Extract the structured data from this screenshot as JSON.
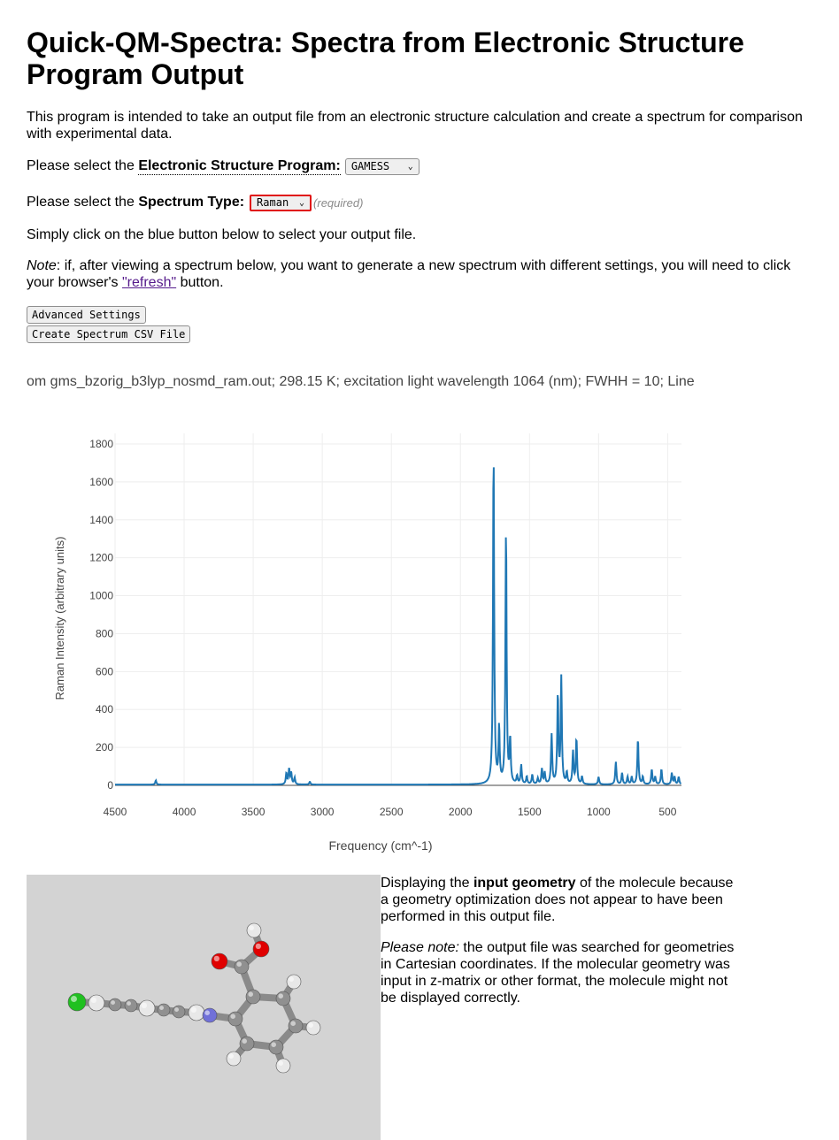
{
  "page_title": "Quick-QM-Spectra: Spectra from Electronic Structure Program Output",
  "intro": "This program is intended to take an output file from an electronic structure calculation and create a spectrum for comparison with experimental data.",
  "program_select": {
    "prefix": "Please select the",
    "label": "Electronic Structure Program:",
    "value": "GAMESS"
  },
  "spectrum_select": {
    "prefix": "Please select the",
    "label": "Spectrum Type:",
    "value": "Raman",
    "required": "(required)"
  },
  "instruction": "Simply click on the blue button below to select your output file.",
  "note": {
    "label": "Note",
    "text_before": ": if, after viewing a spectrum below, you want to generate a new spectrum with different settings, you will need to click your browser's ",
    "link": "\"refresh\"",
    "text_after": " button."
  },
  "buttons": {
    "advanced": "Advanced Settings",
    "csv": "Create Spectrum CSV File"
  },
  "marquee": "om gms_bzorig_b3lyp_nosmd_ram.out; 298.15 K; excitation light wavelength 1064 (nm); FWHH = 10; Line",
  "chart_data": {
    "type": "line",
    "title": "",
    "xlabel": "Frequency (cm^-1)",
    "ylabel": "Raman Intensity (arbitrary units)",
    "xlim": [
      4500,
      400
    ],
    "ylim": [
      0,
      1800
    ],
    "x_ticks": [
      4500,
      4000,
      3500,
      3000,
      2500,
      2000,
      1500,
      1000,
      500
    ],
    "y_ticks": [
      0,
      200,
      400,
      600,
      800,
      1000,
      1200,
      1400,
      1600,
      1800
    ],
    "grid": true,
    "color": "#1f77b4",
    "fwhh": 10,
    "peaks": [
      {
        "x": 4205,
        "y": 22
      },
      {
        "x": 3260,
        "y": 60
      },
      {
        "x": 3240,
        "y": 80
      },
      {
        "x": 3225,
        "y": 60
      },
      {
        "x": 3200,
        "y": 35
      },
      {
        "x": 3090,
        "y": 15
      },
      {
        "x": 1760,
        "y": 1750
      },
      {
        "x": 1720,
        "y": 290
      },
      {
        "x": 1670,
        "y": 1340
      },
      {
        "x": 1640,
        "y": 230
      },
      {
        "x": 1590,
        "y": 40
      },
      {
        "x": 1560,
        "y": 100
      },
      {
        "x": 1520,
        "y": 40
      },
      {
        "x": 1480,
        "y": 50
      },
      {
        "x": 1440,
        "y": 30
      },
      {
        "x": 1410,
        "y": 80
      },
      {
        "x": 1390,
        "y": 60
      },
      {
        "x": 1340,
        "y": 260
      },
      {
        "x": 1295,
        "y": 470
      },
      {
        "x": 1270,
        "y": 560
      },
      {
        "x": 1230,
        "y": 60
      },
      {
        "x": 1185,
        "y": 170
      },
      {
        "x": 1160,
        "y": 240
      },
      {
        "x": 1120,
        "y": 40
      },
      {
        "x": 1000,
        "y": 40
      },
      {
        "x": 875,
        "y": 120
      },
      {
        "x": 830,
        "y": 60
      },
      {
        "x": 790,
        "y": 40
      },
      {
        "x": 760,
        "y": 40
      },
      {
        "x": 715,
        "y": 240
      },
      {
        "x": 680,
        "y": 40
      },
      {
        "x": 615,
        "y": 80
      },
      {
        "x": 590,
        "y": 40
      },
      {
        "x": 545,
        "y": 80
      },
      {
        "x": 470,
        "y": 60
      },
      {
        "x": 450,
        "y": 40
      },
      {
        "x": 420,
        "y": 40
      }
    ]
  },
  "geometry_info": {
    "p1_before": "Displaying the ",
    "p1_bold": "input geometry",
    "p1_after": " of the molecule because a geometry optimization does not appear to have been performed in this output file.",
    "p2_italic": "Please note:",
    "p2_text": " the output file was searched for geometries in Cartesian coordinates. If the molecular geometry was input in z-matrix or other format, the molecule might not be displayed correctly."
  },
  "molecule_colors": {
    "carbon": "#909090",
    "hydrogen": "#e8e8e8",
    "oxygen": "#e00000",
    "nitrogen": "#7070d8",
    "chlorine": "#20c020"
  }
}
